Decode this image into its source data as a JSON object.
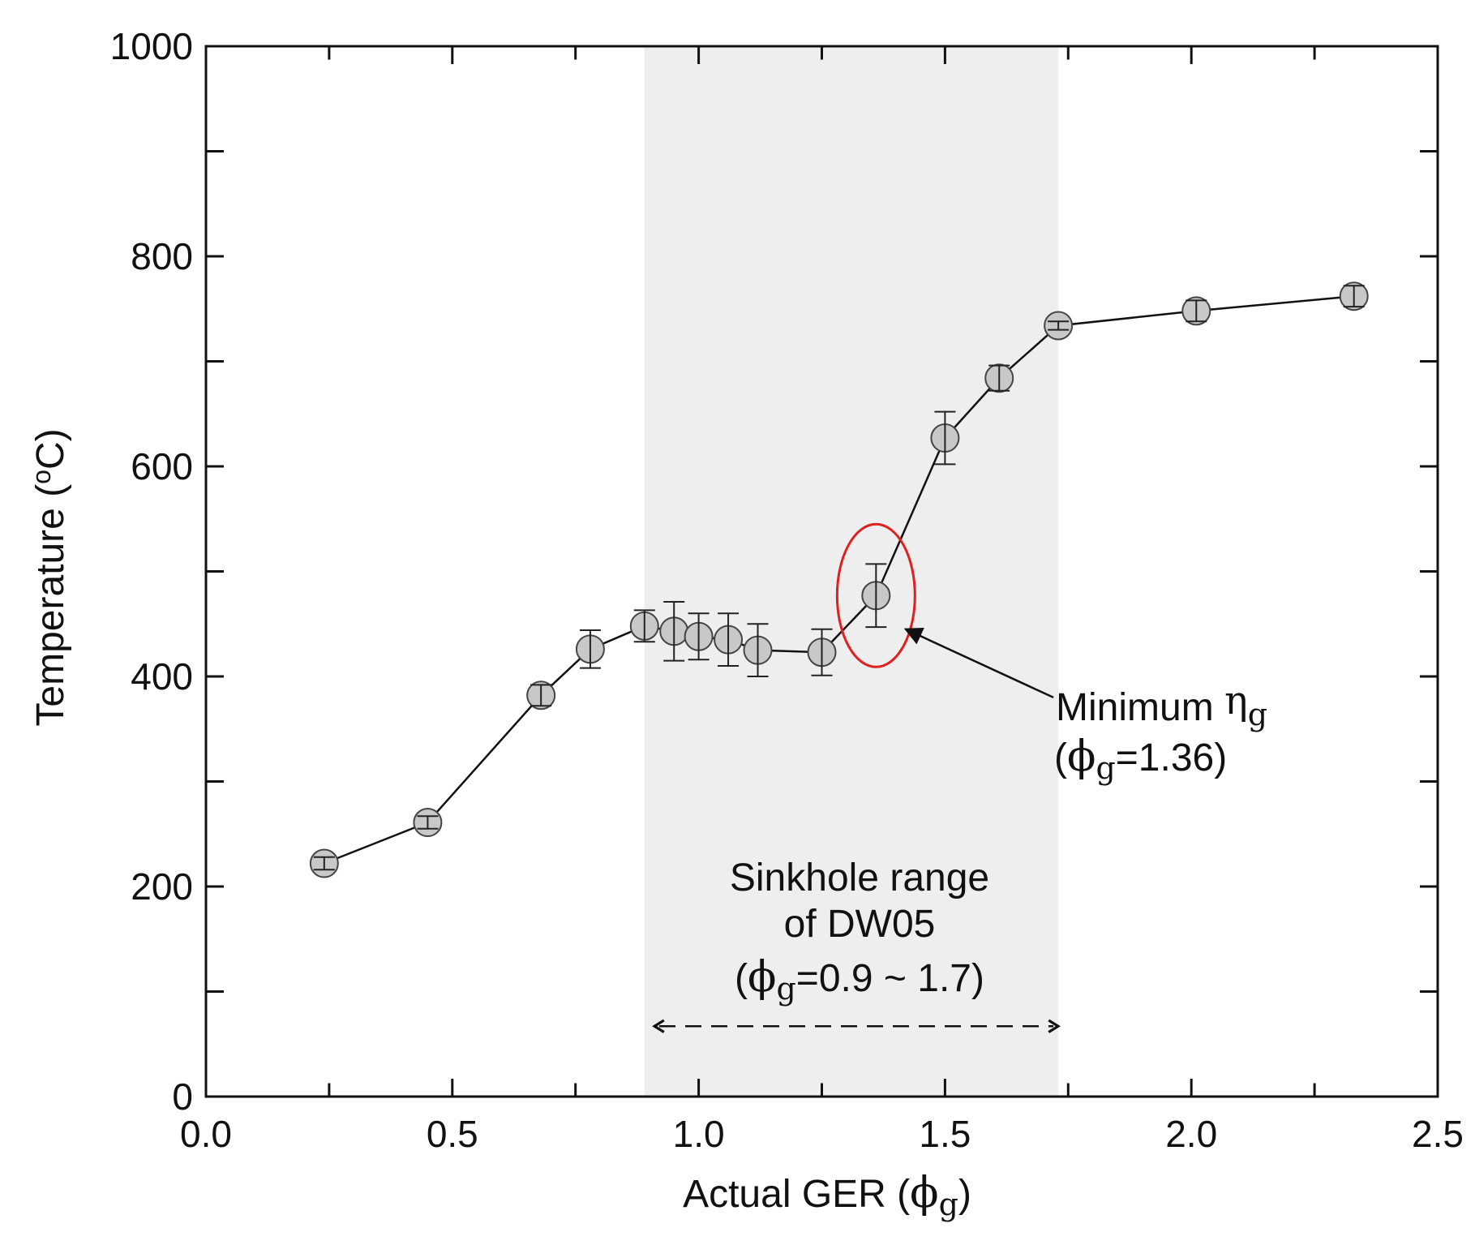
{
  "chart_data": {
    "type": "scatter",
    "title": "",
    "xlabel": "Actual GER (",
    "xlabel_symbol": "ϕ",
    "xlabel_sub": "g",
    "xlabel_close": ")",
    "ylabel": "Temperature (",
    "ylabel_deg": "o",
    "ylabel_unit": "C)",
    "xlim": [
      0.0,
      2.5
    ],
    "ylim": [
      0,
      1000
    ],
    "x_ticks": [
      "0.0",
      "0.5",
      "1.0",
      "1.5",
      "2.0",
      "2.5"
    ],
    "y_ticks": [
      "0",
      "200",
      "400",
      "600",
      "800",
      "1000"
    ],
    "grid": false,
    "series": [
      {
        "name": "Temperature",
        "points": [
          {
            "x": 0.24,
            "y": 222,
            "err": 6
          },
          {
            "x": 0.45,
            "y": 261,
            "err": 6
          },
          {
            "x": 0.68,
            "y": 382,
            "err": 10
          },
          {
            "x": 0.78,
            "y": 426,
            "err": 18
          },
          {
            "x": 0.89,
            "y": 448,
            "err": 15
          },
          {
            "x": 0.95,
            "y": 443,
            "err": 28
          },
          {
            "x": 1.0,
            "y": 438,
            "err": 22
          },
          {
            "x": 1.06,
            "y": 435,
            "err": 25
          },
          {
            "x": 1.12,
            "y": 425,
            "err": 25
          },
          {
            "x": 1.25,
            "y": 423,
            "err": 22
          },
          {
            "x": 1.36,
            "y": 477,
            "err": 30
          },
          {
            "x": 1.5,
            "y": 627,
            "err": 25
          },
          {
            "x": 1.61,
            "y": 684,
            "err": 12
          },
          {
            "x": 1.73,
            "y": 734,
            "err": 4
          },
          {
            "x": 2.01,
            "y": 748,
            "err": 10
          },
          {
            "x": 2.33,
            "y": 762,
            "err": 10
          }
        ]
      }
    ],
    "shaded_region": {
      "x_from": 0.89,
      "x_to": 1.73,
      "color": "#eeeeee"
    },
    "highlight_point_x": 1.36,
    "annotations": {
      "minimum": {
        "line1": "Minimum ",
        "line1_symbol": "η",
        "line1_sub": "g",
        "line2_open": "(",
        "line2_symbol": "ϕ",
        "line2_sub": "g",
        "line2_rest": "=1.36)",
        "arrow_tail": {
          "x": 1.72,
          "y": 380
        },
        "arrow_head": {
          "x": 1.42,
          "y": 445
        }
      },
      "sinkhole": {
        "line1": "Sinkhole range",
        "line2": "of DW05",
        "line3_open": "(",
        "line3_symbol": "ϕ",
        "line3_sub": "g",
        "line3_rest": "=0.9 ~ 1.7)",
        "arrow_from_x": 0.92,
        "arrow_to_x": 1.72,
        "arrow_y": 67
      }
    },
    "colors": {
      "marker_fill": "#c8c8c8",
      "marker_stroke": "#444444",
      "line": "#111111",
      "highlight": "#e02020",
      "axis": "#111111"
    }
  }
}
